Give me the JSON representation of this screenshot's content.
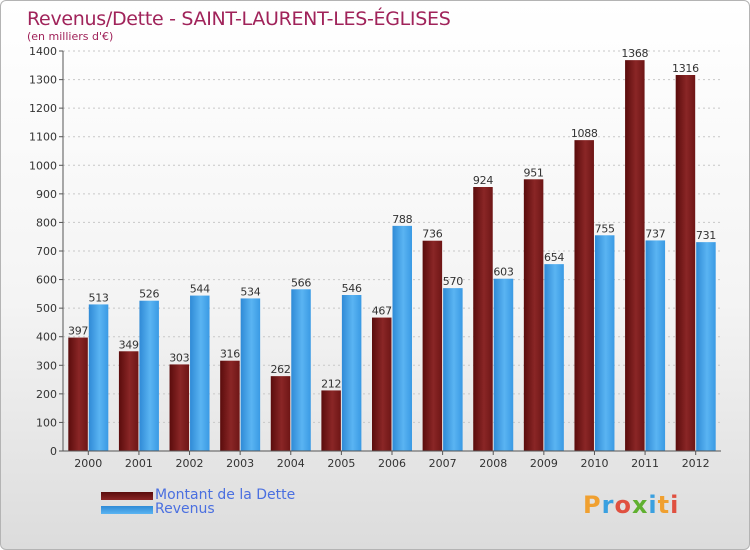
{
  "chart_data": {
    "type": "bar",
    "title": "Revenus/Dette - SAINT-LAURENT-LES-ÉGLISES",
    "subtitle": "(en milliers d'€)",
    "categories": [
      "2000",
      "2001",
      "2002",
      "2003",
      "2004",
      "2005",
      "2006",
      "2007",
      "2008",
      "2009",
      "2010",
      "2011",
      "2012"
    ],
    "series": [
      {
        "name": "Montant de la Dette",
        "color": "#7a1a1a",
        "values": [
          397,
          349,
          303,
          316,
          262,
          212,
          467,
          736,
          924,
          951,
          1088,
          1368,
          1316
        ]
      },
      {
        "name": "Revenus",
        "color": "#3d9fe6",
        "values": [
          513,
          526,
          544,
          534,
          566,
          546,
          788,
          570,
          603,
          654,
          755,
          737,
          731
        ]
      }
    ],
    "ylim": [
      0,
      1400
    ],
    "yticks": [
      0,
      100,
      200,
      300,
      400,
      500,
      600,
      700,
      800,
      900,
      1000,
      1100,
      1200,
      1300,
      1400
    ],
    "grid": true,
    "legend_position": "bottom-left"
  },
  "logo": {
    "text": "Proxiti",
    "letter_colors": [
      "#f0a030",
      "#3aa0e0",
      "#e05040",
      "#60b030",
      "#3aa0e0",
      "#f0a030",
      "#e05040"
    ]
  }
}
